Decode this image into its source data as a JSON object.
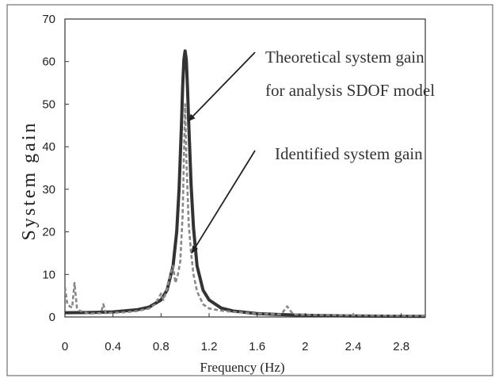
{
  "chart_data": {
    "type": "line",
    "xlabel": "Frequency (Hz)",
    "ylabel": "System gain",
    "xlim": [
      0,
      3.0
    ],
    "ylim": [
      0,
      70
    ],
    "xticks": [
      "0",
      "0.4",
      "0.8",
      "1.2",
      "1.6",
      "2",
      "2.4",
      "2.8"
    ],
    "xtick_values": [
      0,
      0.4,
      0.8,
      1.2,
      1.6,
      2.0,
      2.4,
      2.8
    ],
    "yticks": [
      "0",
      "10",
      "20",
      "30",
      "40",
      "50",
      "60",
      "70"
    ],
    "ytick_values": [
      0,
      10,
      20,
      30,
      40,
      50,
      60,
      70
    ],
    "grid": false,
    "legend": "none",
    "series": [
      {
        "style": "solid",
        "color": "#333333",
        "x": [
          0,
          0.2,
          0.4,
          0.6,
          0.7,
          0.8,
          0.85,
          0.9,
          0.93,
          0.95,
          0.97,
          0.98,
          0.99,
          1.0,
          1.01,
          1.02,
          1.03,
          1.05,
          1.07,
          1.1,
          1.15,
          1.2,
          1.3,
          1.4,
          1.6,
          1.8,
          2.0,
          2.4,
          2.8,
          3.0
        ],
        "y": [
          1.0,
          1.05,
          1.2,
          1.7,
          2.3,
          4.0,
          6.3,
          12.0,
          20.0,
          30.0,
          45.0,
          54.0,
          60.5,
          62.5,
          60.5,
          54.0,
          46.0,
          31.0,
          21.0,
          12.0,
          6.3,
          4.0,
          2.1,
          1.4,
          0.8,
          0.55,
          0.4,
          0.25,
          0.17,
          0.15
        ]
      },
      {
        "style": "dashed",
        "color": "#888888",
        "x": [
          0,
          0.02,
          0.04,
          0.06,
          0.08,
          0.1,
          0.12,
          0.15,
          0.2,
          0.3,
          0.32,
          0.34,
          0.4,
          0.5,
          0.6,
          0.7,
          0.75,
          0.8,
          0.82,
          0.85,
          0.87,
          0.9,
          0.92,
          0.94,
          0.96,
          0.98,
          1.0,
          1.01,
          1.02,
          1.03,
          1.05,
          1.07,
          1.1,
          1.15,
          1.2,
          1.3,
          1.4,
          1.5,
          1.6,
          1.8,
          1.85,
          1.9,
          2.0,
          2.4,
          2.8,
          3.0
        ],
        "y": [
          7,
          3,
          2.5,
          2.2,
          8,
          2,
          1.5,
          1.2,
          0.8,
          0.9,
          3,
          0.9,
          1.0,
          1.1,
          1.4,
          2.0,
          3.0,
          5.5,
          4,
          6.5,
          9,
          12,
          8,
          10,
          13,
          24,
          50,
          38,
          30,
          22,
          15,
          10,
          6,
          3,
          2,
          1.5,
          1.2,
          1.0,
          0.8,
          0.6,
          2.5,
          0.6,
          0.5,
          0.4,
          0.3,
          0.3
        ]
      }
    ],
    "annotations": [
      {
        "lines": [
          "Theoretical system gain",
          "for analysis SDOF model"
        ],
        "arrow_to": {
          "x": 1.025,
          "y": 46
        }
      },
      {
        "lines": [
          "Identified system gain"
        ],
        "arrow_to": {
          "x": 1.055,
          "y": 15
        }
      }
    ]
  }
}
